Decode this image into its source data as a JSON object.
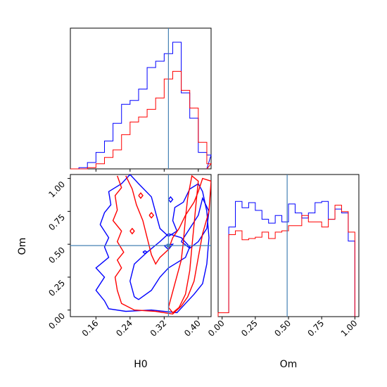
{
  "colors": {
    "series_blue": "#0000ff",
    "series_red": "#ff0000",
    "truth_line": "#4682b4",
    "axes": "#000000",
    "background": "#ffffff"
  },
  "chart_data": [
    {
      "type": "histogram",
      "panel": "H0 marginal",
      "xlim": [
        0.1,
        0.43
      ],
      "ylim": [
        0,
        1.0
      ],
      "truth": 0.33,
      "series": [
        {
          "color": "blue",
          "bin_edges": [
            0.1,
            0.12,
            0.14,
            0.16,
            0.18,
            0.2,
            0.22,
            0.24,
            0.26,
            0.28,
            0.3,
            0.32,
            0.34,
            0.36,
            0.38,
            0.4,
            0.42
          ],
          "counts": [
            0.0,
            0.01,
            0.05,
            0.13,
            0.22,
            0.36,
            0.51,
            0.54,
            0.63,
            0.8,
            0.85,
            0.91,
            1.0,
            0.6,
            0.4,
            0.13,
            0.11
          ]
        },
        {
          "color": "red",
          "bin_edges": [
            0.1,
            0.12,
            0.14,
            0.16,
            0.18,
            0.2,
            0.22,
            0.24,
            0.26,
            0.28,
            0.3,
            0.32,
            0.34,
            0.36,
            0.38,
            0.4,
            0.42
          ],
          "counts": [
            0.0,
            0.0,
            0.01,
            0.04,
            0.09,
            0.15,
            0.27,
            0.37,
            0.41,
            0.47,
            0.56,
            0.71,
            0.77,
            0.62,
            0.48,
            0.21,
            0.04
          ]
        }
      ],
      "xticks": [
        0.16,
        0.24,
        0.32,
        0.4
      ]
    },
    {
      "type": "contour",
      "panel": "Om vs H0",
      "xlim": [
        0.1,
        0.43
      ],
      "ylim": [
        -0.05,
        1.03
      ],
      "xlabel": "H0",
      "ylabel": "Om",
      "truth": {
        "x": 0.33,
        "y": 0.49
      },
      "xticks": [
        0.16,
        0.24,
        0.32,
        0.4
      ],
      "xtick_labels": [
        "0.16",
        "0.24",
        "0.32",
        "0.40"
      ],
      "yticks": [
        0.0,
        0.25,
        0.5,
        0.75,
        1.0
      ],
      "ytick_labels": [
        "0.00",
        "0.25",
        "0.50",
        "0.75",
        "1.00"
      ],
      "series": [
        {
          "color": "blue",
          "contours": [
            [
              [
                0.24,
                1.03
              ],
              [
                0.22,
                0.96
              ],
              [
                0.19,
                0.9
              ],
              [
                0.195,
                0.8
              ],
              [
                0.18,
                0.74
              ],
              [
                0.17,
                0.65
              ],
              [
                0.19,
                0.55
              ],
              [
                0.18,
                0.48
              ],
              [
                0.19,
                0.4
              ],
              [
                0.16,
                0.32
              ],
              [
                0.18,
                0.25
              ],
              [
                0.16,
                0.15
              ],
              [
                0.18,
                0.07
              ],
              [
                0.19,
                0.01
              ],
              [
                0.23,
                -0.01
              ],
              [
                0.29,
                0.0
              ],
              [
                0.35,
                -0.02
              ],
              [
                0.37,
                0.05
              ],
              [
                0.39,
                0.12
              ],
              [
                0.41,
                0.2
              ],
              [
                0.42,
                0.35
              ],
              [
                0.425,
                0.55
              ],
              [
                0.42,
                0.75
              ],
              [
                0.41,
                0.9
              ],
              [
                0.4,
                0.96
              ],
              [
                0.38,
                0.92
              ],
              [
                0.365,
                0.82
              ],
              [
                0.345,
                0.78
              ],
              [
                0.34,
                0.68
              ],
              [
                0.35,
                0.6
              ],
              [
                0.33,
                0.56
              ],
              [
                0.31,
                0.62
              ],
              [
                0.3,
                0.74
              ],
              [
                0.29,
                0.86
              ],
              [
                0.26,
                0.96
              ],
              [
                0.24,
                1.03
              ]
            ],
            [
              [
                0.25,
                0.1
              ],
              [
                0.24,
                0.22
              ],
              [
                0.25,
                0.35
              ],
              [
                0.28,
                0.44
              ],
              [
                0.31,
                0.52
              ],
              [
                0.33,
                0.58
              ],
              [
                0.36,
                0.55
              ],
              [
                0.38,
                0.48
              ],
              [
                0.37,
                0.4
              ],
              [
                0.345,
                0.35
              ],
              [
                0.33,
                0.32
              ],
              [
                0.31,
                0.25
              ],
              [
                0.29,
                0.15
              ],
              [
                0.26,
                0.08
              ],
              [
                0.25,
                0.1
              ]
            ],
            [
              [
                0.36,
                0.52
              ],
              [
                0.38,
                0.62
              ],
              [
                0.4,
                0.72
              ],
              [
                0.41,
                0.85
              ],
              [
                0.425,
                0.75
              ],
              [
                0.42,
                0.62
              ],
              [
                0.4,
                0.52
              ],
              [
                0.38,
                0.47
              ],
              [
                0.36,
                0.52
              ]
            ],
            [
              [
                0.32,
                0.49
              ],
              [
                0.34,
                0.5
              ],
              [
                0.33,
                0.46
              ],
              [
                0.32,
                0.49
              ]
            ],
            [
              [
                0.33,
                0.84
              ],
              [
                0.335,
                0.86
              ],
              [
                0.34,
                0.84
              ],
              [
                0.335,
                0.82
              ],
              [
                0.33,
                0.84
              ]
            ],
            [
              [
                0.27,
                0.44
              ],
              [
                0.275,
                0.45
              ],
              [
                0.28,
                0.44
              ],
              [
                0.275,
                0.43
              ],
              [
                0.27,
                0.44
              ]
            ]
          ]
        },
        {
          "color": "red",
          "contours": [
            [
              [
                0.21,
                1.02
              ],
              [
                0.22,
                0.93
              ],
              [
                0.205,
                0.87
              ],
              [
                0.21,
                0.76
              ],
              [
                0.2,
                0.68
              ],
              [
                0.22,
                0.6
              ],
              [
                0.21,
                0.52
              ],
              [
                0.225,
                0.44
              ],
              [
                0.21,
                0.38
              ],
              [
                0.22,
                0.32
              ],
              [
                0.205,
                0.25
              ],
              [
                0.21,
                0.15
              ],
              [
                0.22,
                0.05
              ],
              [
                0.25,
                0.0
              ],
              [
                0.3,
                -0.01
              ],
              [
                0.34,
                -0.03
              ],
              [
                0.36,
                0.03
              ],
              [
                0.375,
                0.1
              ],
              [
                0.39,
                0.22
              ],
              [
                0.4,
                0.4
              ],
              [
                0.41,
                0.58
              ],
              [
                0.425,
                0.75
              ],
              [
                0.43,
                0.98
              ],
              [
                0.41,
                1.0
              ],
              [
                0.4,
                0.9
              ],
              [
                0.39,
                0.82
              ],
              [
                0.37,
                0.72
              ],
              [
                0.355,
                0.62
              ],
              [
                0.34,
                0.55
              ],
              [
                0.33,
                0.46
              ],
              [
                0.31,
                0.4
              ],
              [
                0.3,
                0.35
              ],
              [
                0.29,
                0.42
              ],
              [
                0.28,
                0.55
              ],
              [
                0.27,
                0.68
              ],
              [
                0.255,
                0.8
              ],
              [
                0.245,
                0.92
              ],
              [
                0.23,
                1.02
              ]
            ],
            [
              [
                0.33,
                0.02
              ],
              [
                0.345,
                0.2
              ],
              [
                0.36,
                0.38
              ],
              [
                0.365,
                0.52
              ],
              [
                0.37,
                0.7
              ],
              [
                0.375,
                0.85
              ],
              [
                0.385,
                1.02
              ],
              [
                0.4,
                0.98
              ],
              [
                0.395,
                0.82
              ],
              [
                0.39,
                0.65
              ],
              [
                0.385,
                0.48
              ],
              [
                0.38,
                0.3
              ],
              [
                0.37,
                0.12
              ],
              [
                0.355,
                0.02
              ],
              [
                0.34,
                -0.02
              ],
              [
                0.33,
                0.02
              ]
            ],
            [
              [
                0.26,
                0.87
              ],
              [
                0.265,
                0.89
              ],
              [
                0.27,
                0.87
              ],
              [
                0.265,
                0.85
              ],
              [
                0.26,
                0.87
              ]
            ],
            [
              [
                0.24,
                0.6
              ],
              [
                0.245,
                0.62
              ],
              [
                0.25,
                0.6
              ],
              [
                0.245,
                0.58
              ],
              [
                0.24,
                0.6
              ]
            ],
            [
              [
                0.285,
                0.72
              ],
              [
                0.29,
                0.74
              ],
              [
                0.295,
                0.72
              ],
              [
                0.29,
                0.7
              ],
              [
                0.285,
                0.72
              ]
            ]
          ]
        }
      ]
    },
    {
      "type": "histogram",
      "panel": "Om marginal",
      "xlim": [
        -0.03,
        1.03
      ],
      "ylim": [
        0,
        1.0
      ],
      "truth": 0.49,
      "xlabel": "Om",
      "xticks": [
        0.0,
        0.25,
        0.5,
        0.75,
        1.0
      ],
      "xtick_labels": [
        "0.00",
        "0.25",
        "0.50",
        "0.75",
        "1.00"
      ],
      "series": [
        {
          "color": "blue",
          "bin_edges": [
            0.0,
            0.05,
            0.1,
            0.15,
            0.2,
            0.25,
            0.3,
            0.35,
            0.4,
            0.45,
            0.5,
            0.55,
            0.6,
            0.65,
            0.7,
            0.75,
            0.8,
            0.85,
            0.9,
            0.95,
            1.0
          ],
          "counts": [
            0.03,
            0.7,
            0.9,
            0.85,
            0.89,
            0.83,
            0.76,
            0.73,
            0.79,
            0.74,
            0.88,
            0.81,
            0.77,
            0.81,
            0.89,
            0.9,
            0.76,
            0.84,
            0.81,
            0.59,
            0.27
          ],
          "first_edge": -0.03
        },
        {
          "color": "red",
          "bin_edges": [
            0.0,
            0.05,
            0.1,
            0.15,
            0.2,
            0.25,
            0.3,
            0.35,
            0.4,
            0.45,
            0.5,
            0.55,
            0.6,
            0.65,
            0.7,
            0.75,
            0.8,
            0.85,
            0.9,
            0.95,
            1.0
          ],
          "counts": [
            0.03,
            0.64,
            0.67,
            0.6,
            0.61,
            0.62,
            0.66,
            0.61,
            0.66,
            0.67,
            0.71,
            0.71,
            0.79,
            0.74,
            0.74,
            0.7,
            0.76,
            0.87,
            0.82,
            0.66,
            0.01
          ],
          "first_edge": -0.03
        }
      ]
    }
  ]
}
